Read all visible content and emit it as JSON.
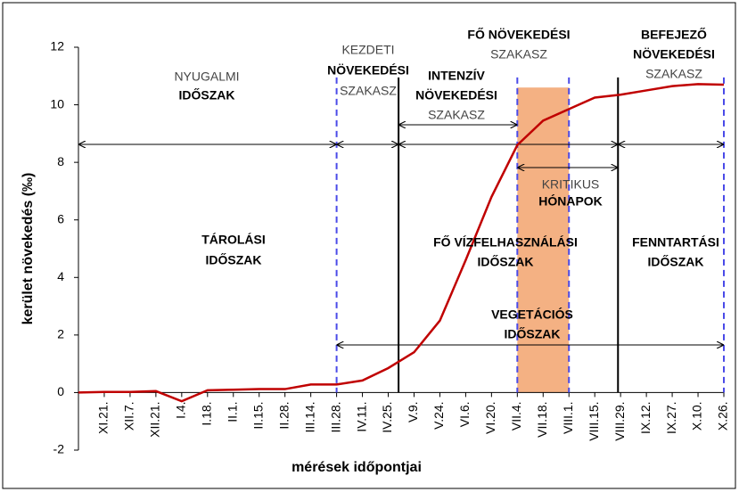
{
  "chart_data": {
    "type": "line",
    "y_axis_label": "kerület növekedés (‰)",
    "x_axis_label": "mérések időpontjai",
    "categories": [
      null,
      "XI.21.",
      "XII.7.",
      "XII.21.",
      "I.4.",
      "I.18.",
      "II.1.",
      "II.15.",
      "II.28.",
      "III.14.",
      "III.28.",
      "IV.11.",
      "IV.25.",
      "V.9.",
      "V.24.",
      "VI.6.",
      "VI.20.",
      "VII.4.",
      "VII.18.",
      "VIII.1.",
      "VIII.15.",
      "VIII.29.",
      "IX.12.",
      "IX.27.",
      "X.10.",
      "X.26."
    ],
    "values": [
      0,
      0.02,
      0.02,
      0.05,
      -0.3,
      0.08,
      0.1,
      0.12,
      0.12,
      0.28,
      0.28,
      0.42,
      0.85,
      1.4,
      2.5,
      4.6,
      6.8,
      8.6,
      9.45,
      9.85,
      10.25,
      10.35,
      10.5,
      10.65,
      10.72,
      10.7
    ],
    "color": "#c00000",
    "ylim": [
      -2,
      12
    ],
    "yticks": [
      -2,
      0,
      2,
      4,
      6,
      8,
      10,
      12
    ],
    "grid": false,
    "annotations": [
      "NYUGALMI",
      "IDŐSZAK",
      "KEZDETI",
      "NÖVEKEDÉSI",
      "SZAKASZ",
      "FŐ NÖVEKEDÉSI",
      "SZAKASZ",
      "INTENZÍV",
      "NÖVEKEDÉSI",
      "SZAKASZ",
      "BEFEJEZŐ",
      "NÖVEKEDÉSI",
      "SZAKASZ",
      "KRITIKUS",
      "HÓNAPOK",
      "TÁROLÁSI",
      "IDŐSZAK",
      "FŐ VÍZFELHASZNÁLÁSI",
      "IDŐSZAK",
      "FENNTARTÁSI",
      "IDŐSZAK",
      "VEGETÁCIÓS",
      "IDŐSZAK"
    ]
  }
}
